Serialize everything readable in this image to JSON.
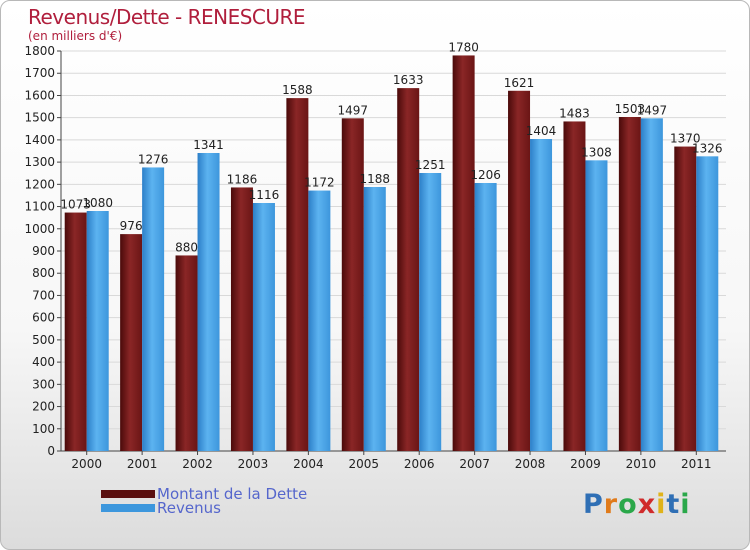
{
  "title": "Revenus/Dette - RENESCURE",
  "subtitle": "(en milliers d'€)",
  "logo": "Proxiti",
  "chart_data": {
    "type": "bar",
    "categories": [
      "2000",
      "2001",
      "2002",
      "2003",
      "2004",
      "2005",
      "2006",
      "2007",
      "2008",
      "2009",
      "2010",
      "2011"
    ],
    "series": [
      {
        "name": "Montant de la Dette",
        "color": "#7a1e1e",
        "values": [
          1073,
          976,
          880,
          1186,
          1588,
          1497,
          1633,
          1780,
          1621,
          1483,
          1503,
          1370
        ]
      },
      {
        "name": "Revenus",
        "color": "#4ba3e3",
        "values": [
          1080,
          1276,
          1341,
          1116,
          1172,
          1188,
          1251,
          1206,
          1404,
          1308,
          1497,
          1326
        ]
      }
    ],
    "yticks": [
      0,
      100,
      200,
      300,
      400,
      500,
      600,
      700,
      800,
      900,
      1000,
      1100,
      1200,
      1300,
      1400,
      1500,
      1600,
      1700,
      1800
    ],
    "ylim": [
      0,
      1800
    ],
    "grid": true,
    "legend_position": "bottom-left"
  }
}
